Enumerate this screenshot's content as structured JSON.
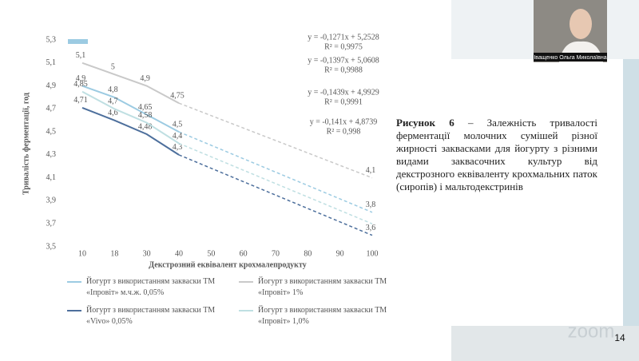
{
  "chart_data": {
    "type": "line",
    "x_label": "Декстрозний еквівалент крохмалепродукту",
    "y_label": "Тривалість ферментації, год",
    "categories": [
      "10",
      "18",
      "30",
      "40",
      "50",
      "60",
      "70",
      "80",
      "90",
      "100"
    ],
    "ylim": [
      3.5,
      5.3
    ],
    "yticks": [
      {
        "value": 3.5,
        "label": "3,5"
      },
      {
        "value": 3.7,
        "label": "3,7"
      },
      {
        "value": 3.9,
        "label": "3,9"
      },
      {
        "value": 4.1,
        "label": "4,1"
      },
      {
        "value": 4.3,
        "label": "4,3"
      },
      {
        "value": 4.5,
        "label": "4,5"
      },
      {
        "value": 4.7,
        "label": "4,7"
      },
      {
        "value": 4.9,
        "label": "4,9"
      },
      {
        "value": 5.1,
        "label": "5,1"
      },
      {
        "value": 5.3,
        "label": "5,3"
      }
    ],
    "series": [
      {
        "name": "Йогурт з використанням закваски ТМ «Іпровіт» м.ч.ж. 0,05%",
        "color": "#9ccbe2",
        "values": [
          4.9,
          4.8,
          4.65,
          4.5,
          null,
          null,
          null,
          null,
          null,
          3.8
        ],
        "value_labels": [
          "4,9",
          "4,8",
          "4,65",
          "4,5",
          null,
          null,
          null,
          null,
          null,
          "3,8"
        ]
      },
      {
        "name": "Йогурт з використанням закваски ТМ «Іпровіт» 1%",
        "color": "#c9c9c9",
        "values": [
          5.1,
          5,
          4.9,
          4.75,
          null,
          null,
          null,
          null,
          null,
          4.1
        ],
        "value_labels": [
          "5,1",
          "5",
          "4,9",
          "4,75",
          null,
          null,
          null,
          null,
          null,
          "4,1"
        ]
      },
      {
        "name": "Йогурт з використанням закваски ТМ «Vivo» 0,05%",
        "color": "#4d6f9c",
        "values": [
          4.71,
          4.6,
          4.48,
          4.3,
          null,
          null,
          null,
          null,
          null,
          3.6
        ],
        "value_labels": [
          "4,71",
          "4,6",
          "4,48",
          "4,3",
          null,
          null,
          null,
          null,
          null,
          "3,6"
        ]
      },
      {
        "name": "Йогурт з використанням закваски ТМ «Іпровіт» 1,0%",
        "color": "#bfdfe2",
        "values": [
          4.85,
          4.7,
          4.58,
          4.4,
          null,
          null,
          null,
          null,
          null,
          3.7
        ],
        "value_labels": [
          "4,85",
          "4,7",
          "4,58",
          "4,4",
          null,
          null,
          null,
          null,
          null,
          null
        ]
      }
    ],
    "annotations": [
      {
        "lines": [
          "y = -0,1271x + 5,2528",
          "R² = 0,9975"
        ]
      },
      {
        "lines": [
          "y = -0,1397x + 5,0608",
          "R² = 0,9988"
        ]
      },
      {
        "lines": [
          "y = -0,1439x + 4,9929",
          "R² = 0,9991"
        ]
      },
      {
        "lines": [
          "y = -0,141x + 4,8739",
          "R² = 0,998"
        ]
      }
    ]
  },
  "caption": {
    "label": "Рисунок 6",
    "text": "– Залежність тривалості ферментації молочних сумішей різної жирності заквасками для йогурту з різними видами заквасочних культур від декстрозного еквіваленту крохмальних паток (сиропів) і мальтодекстринів"
  },
  "participant": {
    "name": "Іващенко Ольга Миколаївна"
  },
  "watermark": "zoom",
  "slide_number": "14"
}
